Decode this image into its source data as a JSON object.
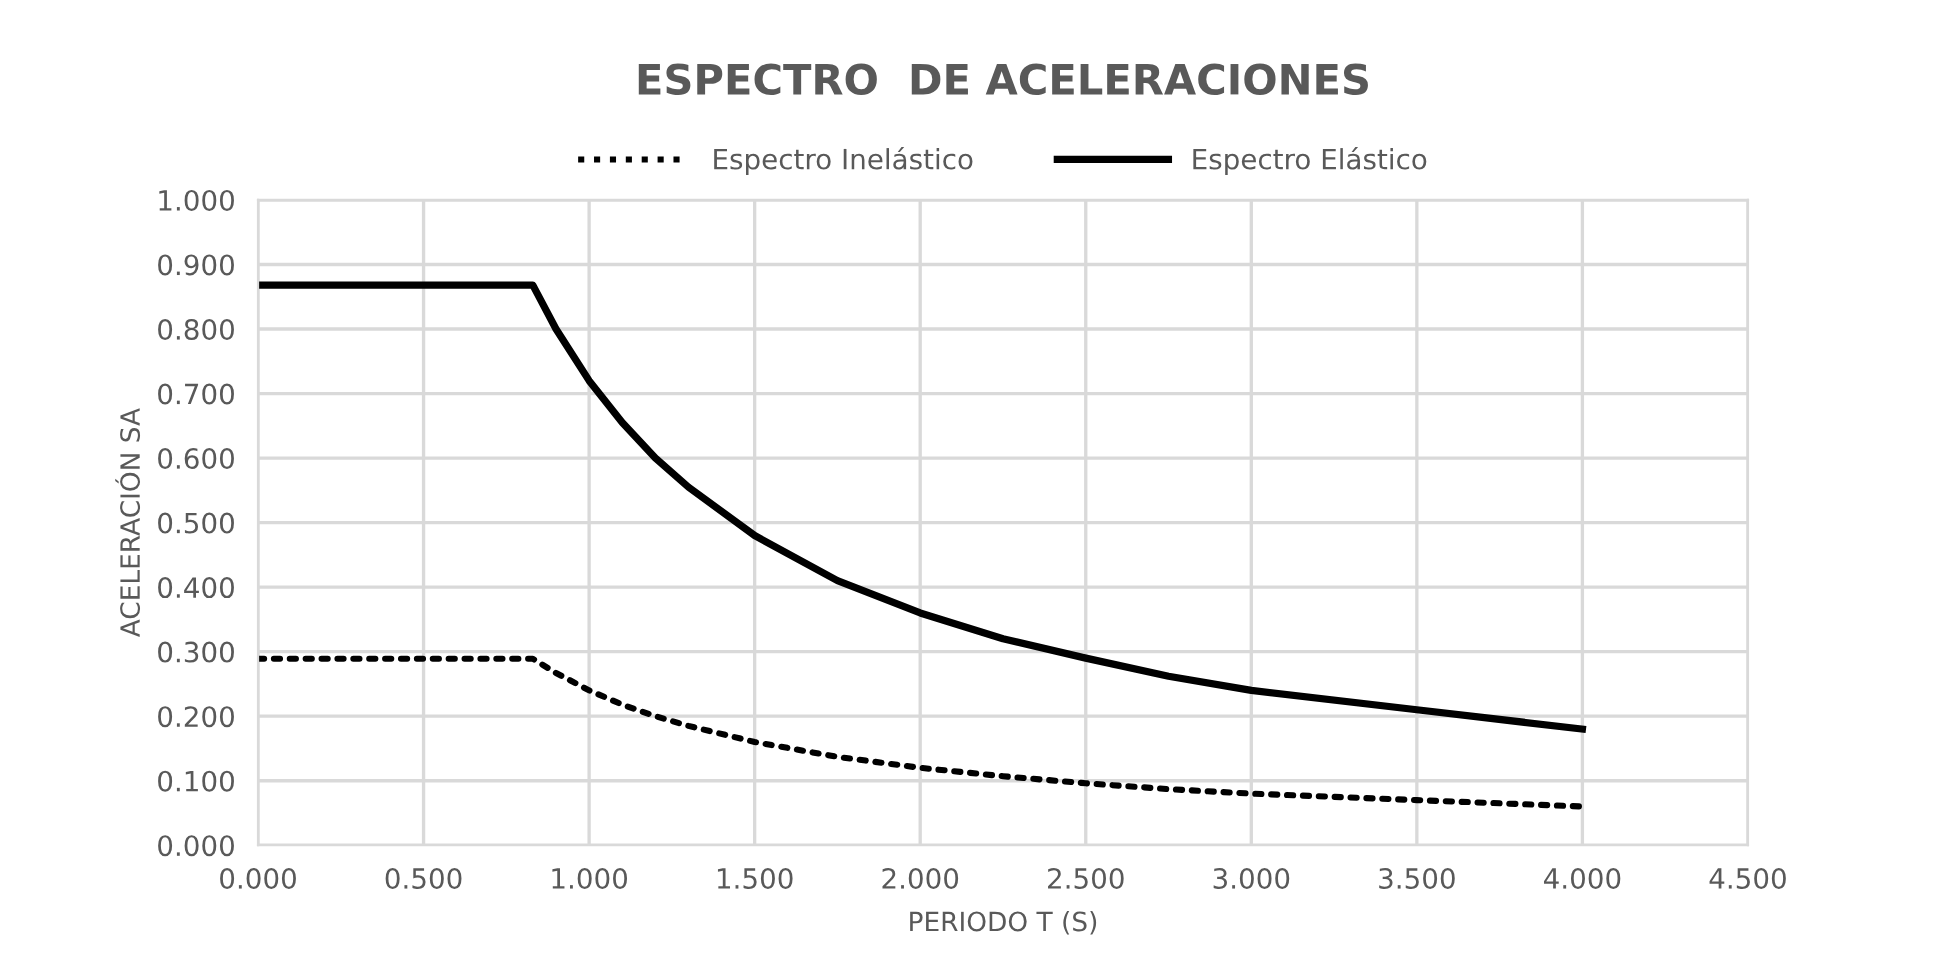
{
  "chart_data": {
    "type": "line",
    "title": "ESPECTRO  DE ACELERACIONES",
    "xlabel": "PERIODO T (S)",
    "ylabel": "ACELERACIÓN SA",
    "x": [
      0,
      0.5,
      0.8,
      0.83,
      0.9,
      1.0,
      1.1,
      1.2,
      1.3,
      1.5,
      1.75,
      2.0,
      2.25,
      2.5,
      2.75,
      3.0,
      3.5,
      4.0
    ],
    "series": [
      {
        "name": "Espectro Inelástico",
        "color": "#000000",
        "line_style": "dotted",
        "values": [
          0.289,
          0.289,
          0.289,
          0.289,
          0.267,
          0.24,
          0.218,
          0.2,
          0.185,
          0.16,
          0.137,
          0.12,
          0.107,
          0.096,
          0.087,
          0.08,
          0.07,
          0.06
        ]
      },
      {
        "name": "Espectro Elástico",
        "color": "#000000",
        "line_style": "solid",
        "values": [
          0.868,
          0.868,
          0.868,
          0.868,
          0.8,
          0.72,
          0.655,
          0.6,
          0.555,
          0.48,
          0.41,
          0.36,
          0.32,
          0.29,
          0.262,
          0.24,
          0.21,
          0.18
        ]
      }
    ],
    "xlim": [
      0,
      4.5
    ],
    "xticks": [
      {
        "value": 0,
        "label": "0.000"
      },
      {
        "value": 0.5,
        "label": "0.500"
      },
      {
        "value": 1,
        "label": "1.000"
      },
      {
        "value": 1.5,
        "label": "1.500"
      },
      {
        "value": 2,
        "label": "2.000"
      },
      {
        "value": 2.5,
        "label": "2.500"
      },
      {
        "value": 3,
        "label": "3.000"
      },
      {
        "value": 3.5,
        "label": "3.500"
      },
      {
        "value": 4,
        "label": "4.000"
      },
      {
        "value": 4.5,
        "label": "4.500"
      }
    ],
    "ylim": [
      0,
      1
    ],
    "yticks": [
      {
        "value": 0,
        "label": "0.000"
      },
      {
        "value": 0.1,
        "label": "0.100"
      },
      {
        "value": 0.2,
        "label": "0.200"
      },
      {
        "value": 0.3,
        "label": "0.300"
      },
      {
        "value": 0.4,
        "label": "0.400"
      },
      {
        "value": 0.5,
        "label": "0.500"
      },
      {
        "value": 0.6,
        "label": "0.600"
      },
      {
        "value": 0.7,
        "label": "0.700"
      },
      {
        "value": 0.8,
        "label": "0.800"
      },
      {
        "value": 0.9,
        "label": "0.900"
      },
      {
        "value": 1,
        "label": "1.000"
      }
    ],
    "grid": true,
    "legend": "top",
    "marker": "none"
  }
}
